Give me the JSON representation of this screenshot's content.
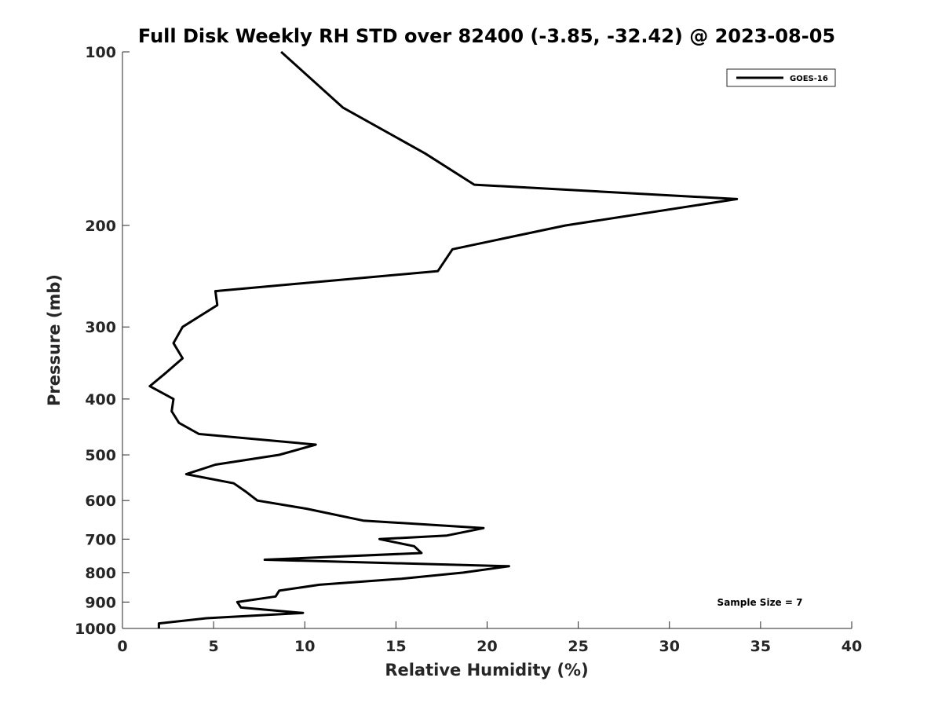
{
  "chart_data": {
    "type": "line",
    "title": "Full Disk Weekly RH STD over 82400 (-3.85, -32.42) @ 2023-08-05",
    "xlabel": "Relative Humidity (%)",
    "ylabel": "Pressure (mb)",
    "xlim": [
      0,
      40
    ],
    "ylim": [
      100,
      1000
    ],
    "y_scale": "log",
    "y_reversed": true,
    "x_ticks": [
      0,
      5,
      10,
      15,
      20,
      25,
      30,
      35,
      40
    ],
    "y_ticks": [
      100,
      200,
      300,
      400,
      500,
      600,
      700,
      800,
      900,
      1000
    ],
    "grid": false,
    "legend_position": "top-right",
    "annotation": "Sample Size = 7",
    "series": [
      {
        "name": "GOES-16",
        "color": "#000000",
        "x": [
          8.7,
          12.1,
          16.6,
          19.3,
          33.7,
          24.3,
          18.1,
          17.3,
          5.1,
          5.2,
          3.3,
          2.8,
          3.3,
          2.4,
          1.5,
          2.8,
          2.7,
          3.1,
          4.2,
          10.6,
          8.6,
          5.1,
          3.5,
          6.1,
          6.8,
          7.4,
          10.1,
          13.2,
          19.8,
          17.8,
          14.1,
          16.0,
          16.4,
          7.8,
          21.2,
          18.7,
          15.3,
          10.8,
          8.6,
          8.4,
          6.3,
          6.5,
          9.9,
          4.6,
          2.0,
          2.0
        ],
        "y": [
          100,
          125,
          150,
          170,
          180,
          200,
          220,
          240,
          260,
          275,
          300,
          320,
          340,
          360,
          380,
          400,
          420,
          440,
          460,
          480,
          500,
          520,
          540,
          560,
          580,
          600,
          620,
          650,
          670,
          690,
          700,
          720,
          740,
          760,
          780,
          800,
          820,
          840,
          860,
          880,
          900,
          920,
          940,
          960,
          980,
          1000
        ]
      }
    ]
  }
}
